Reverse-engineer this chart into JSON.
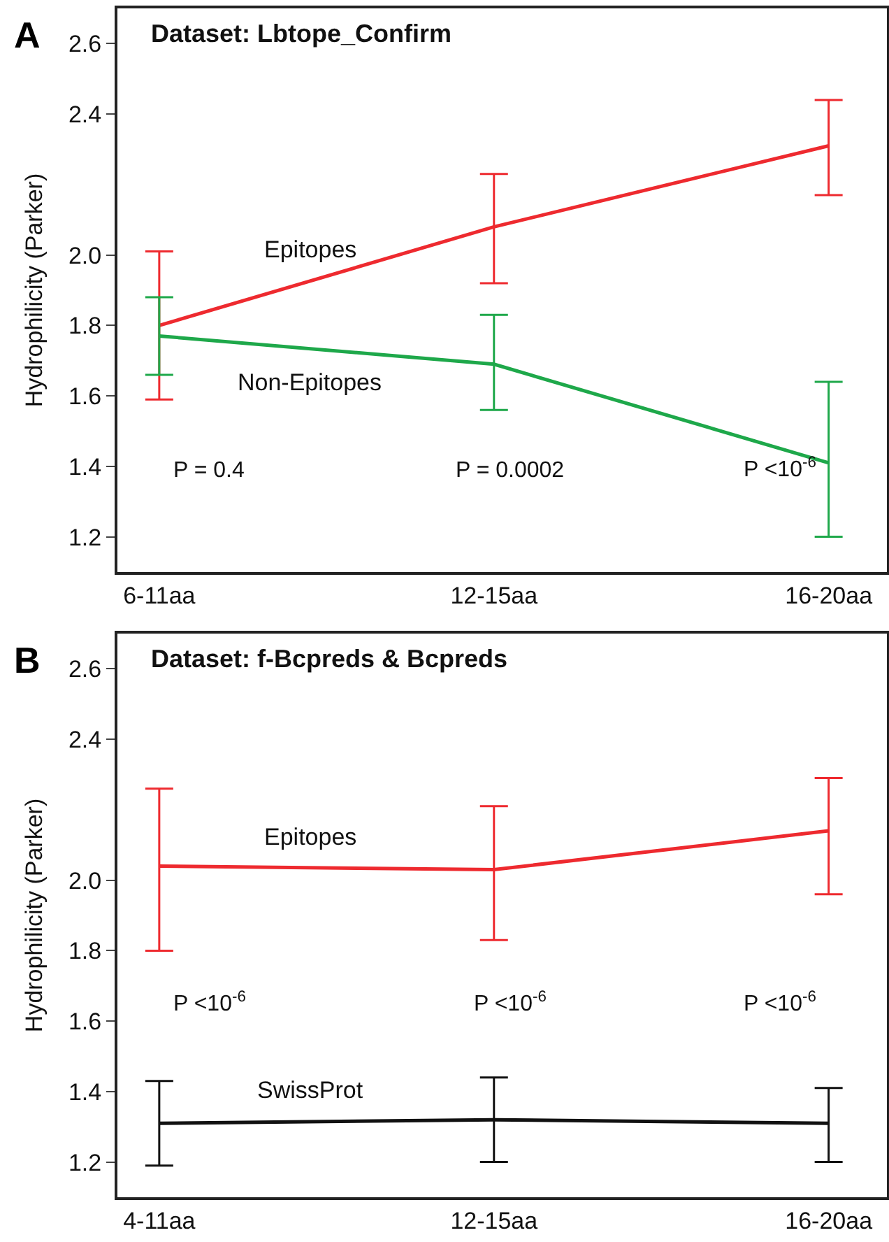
{
  "chart_data": [
    {
      "type": "line",
      "title": "Dataset: Lbtope_Confirm",
      "ylabel": "Hydrophilicity (Parker)",
      "categories": [
        "6-11aa",
        "12-15aa",
        "16-20aa"
      ],
      "series": [
        {
          "name": "Epitopes",
          "color": "#ee2a2f",
          "values": [
            1.8,
            2.08,
            2.31
          ],
          "errors": [
            [
              1.59,
              2.01
            ],
            [
              1.92,
              2.23
            ],
            [
              2.17,
              2.44
            ]
          ]
        },
        {
          "name": "Non-Epitopes",
          "color": "#1ea84a",
          "values": [
            1.77,
            1.69,
            1.41
          ],
          "errors": [
            [
              1.66,
              1.88
            ],
            [
              1.56,
              1.83
            ],
            [
              1.2,
              1.64
            ]
          ]
        }
      ],
      "ylim": [
        1.1,
        2.7
      ],
      "yticks": [
        {
          "value": 1.2,
          "label": "1.2"
        },
        {
          "value": 1.4,
          "label": "1.4"
        },
        {
          "value": 1.6,
          "label": "1.6"
        },
        {
          "value": 1.8,
          "label": "1.8"
        },
        {
          "value": 2.0,
          "label": "2.0"
        },
        {
          "value": 2.4,
          "label": "2.4"
        },
        {
          "value": 2.6,
          "label": "2.6"
        }
      ],
      "annotations": [
        "A",
        "P = 0.4",
        "P = 0.0002",
        "P <10$^{-6}$"
      ],
      "marker": "none",
      "line_style": "solid"
    },
    {
      "type": "line",
      "title": "Dataset: f-Bcpreds & Bcpreds",
      "ylabel": "Hydrophilicity (Parker)",
      "categories": [
        "4-11aa",
        "12-15aa",
        "16-20aa"
      ],
      "series": [
        {
          "name": "Epitopes",
          "color": "#ee2a2f",
          "values": [
            2.04,
            2.03,
            2.14
          ],
          "errors": [
            [
              1.8,
              2.26
            ],
            [
              1.83,
              2.21
            ],
            [
              1.96,
              2.29
            ]
          ]
        },
        {
          "name": "SwissProt",
          "color": "#111111",
          "values": [
            1.31,
            1.32,
            1.31
          ],
          "errors": [
            [
              1.19,
              1.43
            ],
            [
              1.2,
              1.44
            ],
            [
              1.2,
              1.41
            ]
          ]
        }
      ],
      "ylim": [
        1.1,
        2.7
      ],
      "yticks": [
        {
          "value": 1.2,
          "label": "1.2"
        },
        {
          "value": 1.4,
          "label": "1.4"
        },
        {
          "value": 1.6,
          "label": "1.6"
        },
        {
          "value": 1.8,
          "label": "1.8"
        },
        {
          "value": 2.0,
          "label": "2.0"
        },
        {
          "value": 2.4,
          "label": "2.4"
        },
        {
          "value": 2.6,
          "label": "2.6"
        }
      ],
      "annotations": [
        "B",
        "P <10$^{-6}$",
        "P <10$^{-6}$",
        "P <10$^{-6}$"
      ],
      "marker": "none",
      "line_style": "solid"
    }
  ]
}
